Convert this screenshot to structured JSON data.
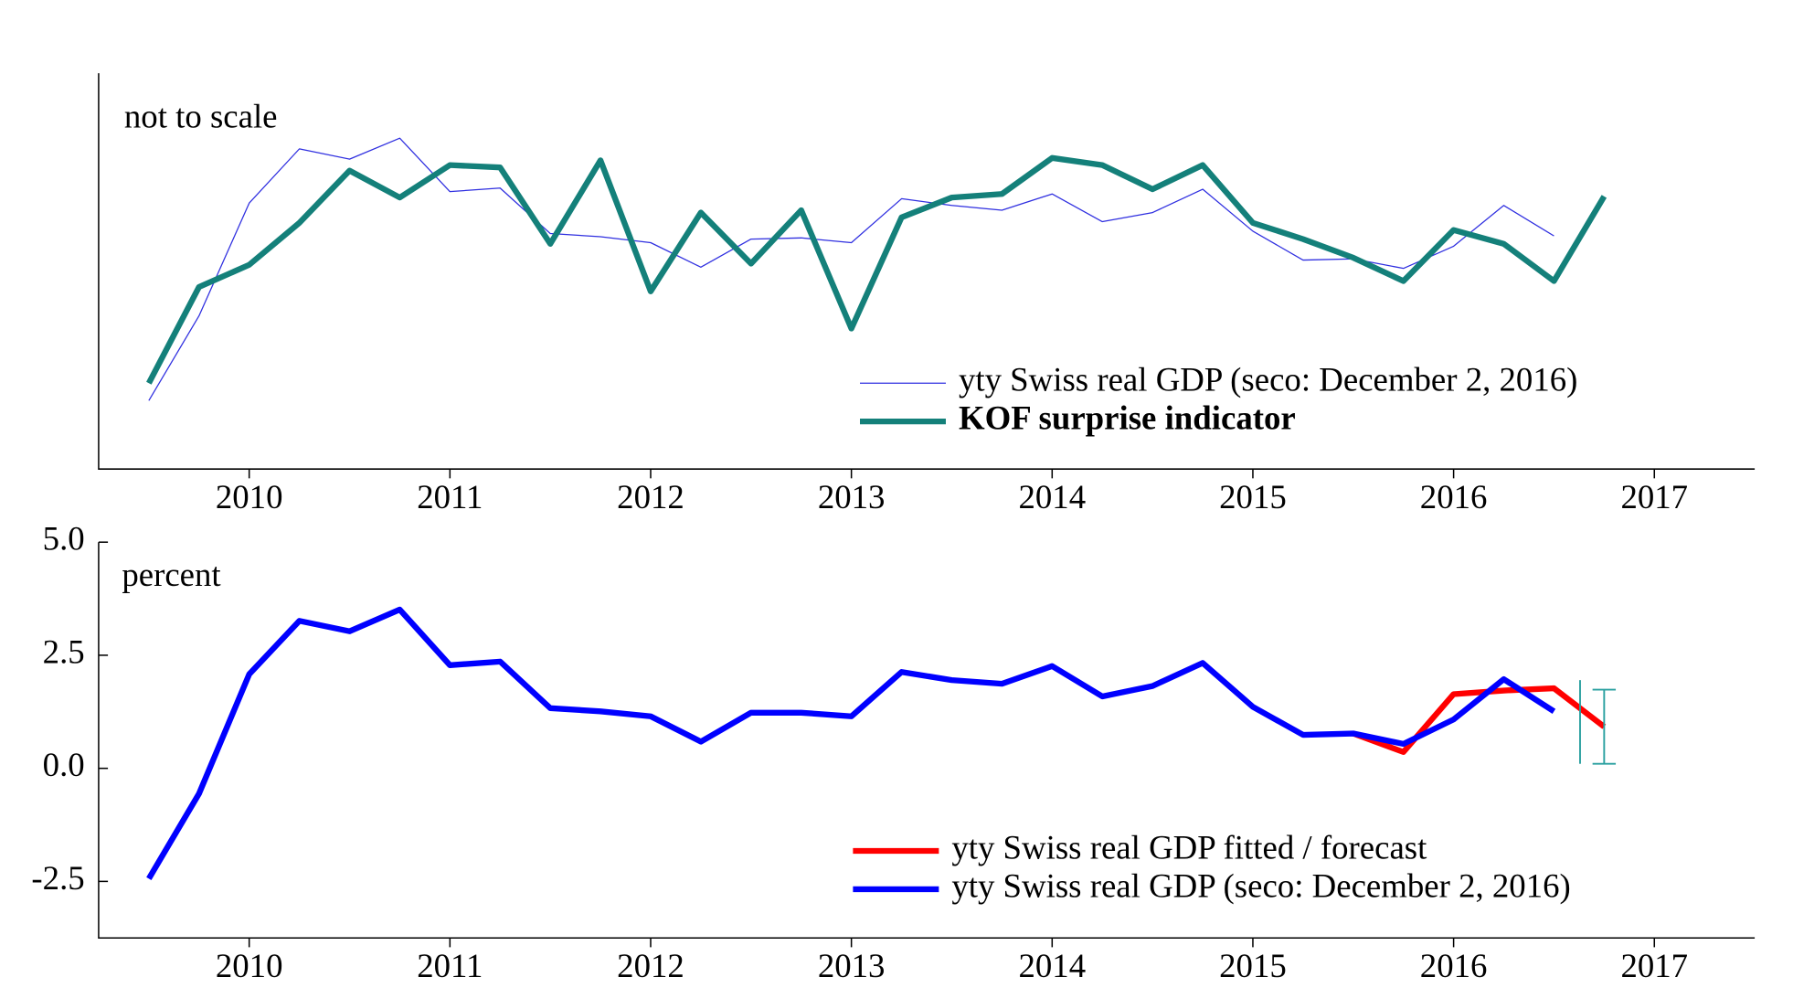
{
  "chart_data": [
    {
      "type": "line",
      "annotation": "not to scale",
      "xlim": [
        2009.25,
        2017.5
      ],
      "xticks": [
        2010,
        2011,
        2012,
        2013,
        2014,
        2015,
        2016,
        2017
      ],
      "ylim": [
        0,
        100
      ],
      "series": [
        {
          "name": "yty Swiss real GDP (seco: December 2, 2016)",
          "color": "#2f2fe0",
          "line_width": 1,
          "x": [
            2009.5,
            2009.75,
            2010,
            2010.25,
            2010.5,
            2010.75,
            2011,
            2011.25,
            2011.5,
            2011.75,
            2012,
            2012.25,
            2012.5,
            2012.75,
            2013,
            2013.25,
            2013.5,
            2013.75,
            2014,
            2014.25,
            2014.5,
            2014.75,
            2015,
            2015.25,
            2015.5,
            2015.75,
            2016,
            2016.25,
            2016.5
          ],
          "values": [
            17.3,
            38.7,
            67.2,
            80.9,
            78.3,
            83.6,
            70.1,
            71.0,
            59.5,
            58.7,
            57.2,
            51.0,
            58.1,
            58.4,
            57.2,
            68.3,
            66.6,
            65.4,
            69.5,
            62.5,
            64.8,
            70.7,
            60.1,
            52.8,
            53.1,
            50.7,
            56.3,
            66.6,
            58.9
          ]
        },
        {
          "name": "KOF surprise indicator",
          "color": "#14807a",
          "line_width": 5,
          "legend_bold": true,
          "x": [
            2009.5,
            2009.75,
            2010,
            2010.25,
            2010.5,
            2010.75,
            2011,
            2011.25,
            2011.5,
            2011.75,
            2012,
            2012.25,
            2012.5,
            2012.75,
            2013,
            2013.25,
            2013.5,
            2013.75,
            2014,
            2014.25,
            2014.5,
            2014.75,
            2015,
            2015.25,
            2015.5,
            2015.75,
            2016,
            2016.25,
            2016.5,
            2016.75
          ],
          "values": [
            21.7,
            46.0,
            51.6,
            62.2,
            75.4,
            68.6,
            76.8,
            76.2,
            56.9,
            78.0,
            44.9,
            64.8,
            51.9,
            65.4,
            35.5,
            63.6,
            68.6,
            69.5,
            78.6,
            76.8,
            70.7,
            76.8,
            62.2,
            58.1,
            53.4,
            47.5,
            60.4,
            56.9,
            47.5,
            68.9
          ]
        }
      ]
    },
    {
      "type": "line",
      "annotation": "percent",
      "xlim": [
        2009.25,
        2017.5
      ],
      "xticks": [
        2010,
        2011,
        2012,
        2013,
        2014,
        2015,
        2016,
        2017
      ],
      "ylim": [
        -3.75,
        5
      ],
      "yticks": [
        {
          "value": 5,
          "label": "5.0"
        },
        2.5,
        {
          "value": 0,
          "label": "0.0"
        },
        -2.5
      ],
      "series": [
        {
          "name": "yty Swiss real GDP fitted / forecast",
          "color": "#ff0000",
          "line_width": 5,
          "x": [
            2015.5,
            2015.75,
            2016,
            2016.25,
            2016.5,
            2016.75
          ],
          "values": [
            0.77,
            0.36,
            1.64,
            1.72,
            1.77,
            0.92
          ]
        },
        {
          "name": "yty Swiss real GDP (seco: December 2, 2016)",
          "color": "#0000ff",
          "line_width": 5,
          "x": [
            2009.5,
            2009.75,
            2010,
            2010.25,
            2010.5,
            2010.75,
            2011,
            2011.25,
            2011.5,
            2011.75,
            2012,
            2012.25,
            2012.5,
            2012.75,
            2013,
            2013.25,
            2013.5,
            2013.75,
            2014,
            2014.25,
            2014.5,
            2014.75,
            2015,
            2015.25,
            2015.5,
            2015.75,
            2016,
            2016.25,
            2016.5
          ],
          "values": [
            -2.44,
            -0.56,
            2.08,
            3.26,
            3.03,
            3.51,
            2.28,
            2.36,
            1.33,
            1.26,
            1.15,
            0.59,
            1.23,
            1.23,
            1.15,
            2.13,
            1.95,
            1.87,
            2.26,
            1.59,
            1.82,
            2.33,
            1.36,
            0.74,
            0.77,
            0.54,
            1.08,
            1.97,
            1.26
          ]
        }
      ],
      "error_bars": {
        "color": "#2aa0a0",
        "items": [
          {
            "x": 2016.63,
            "low": 0.1,
            "high": 1.95
          },
          {
            "x": 2016.75,
            "low": 0.1,
            "high": 1.74
          }
        ]
      }
    }
  ]
}
